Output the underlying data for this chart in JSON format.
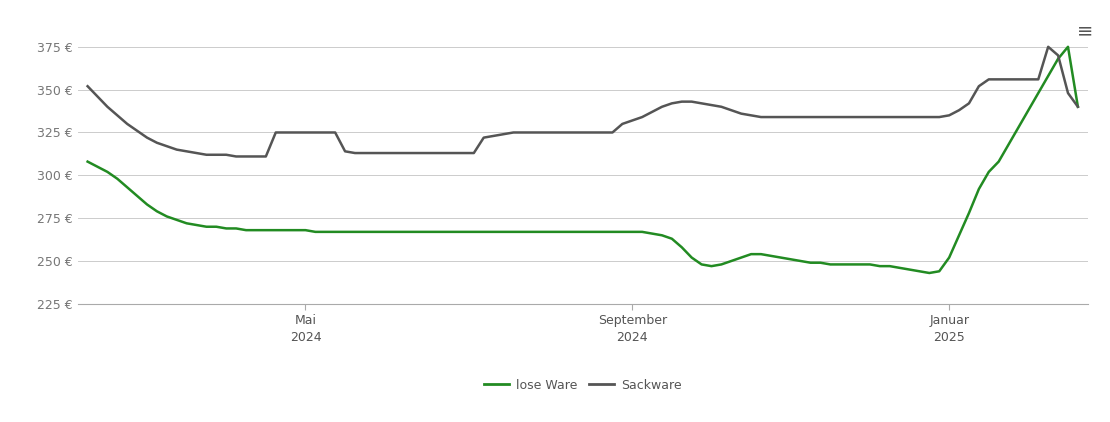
{
  "background_color": "#ffffff",
  "plot_bg_color": "#ffffff",
  "grid_color": "#cccccc",
  "ylim": [
    225,
    390
  ],
  "yticks": [
    225,
    250,
    275,
    300,
    325,
    350,
    375
  ],
  "xtick_labels": [
    "Mai\n2024",
    "September\n2024",
    "Januar\n2025"
  ],
  "xtick_positions": [
    0.22,
    0.55,
    0.87
  ],
  "lose_ware_color": "#228B22",
  "sackware_color": "#555555",
  "legend_lose": "lose Ware",
  "legend_sack": "Sackware",
  "lose_ware": {
    "x": [
      0,
      0.01,
      0.02,
      0.03,
      0.04,
      0.05,
      0.06,
      0.07,
      0.08,
      0.09,
      0.1,
      0.11,
      0.12,
      0.13,
      0.14,
      0.15,
      0.16,
      0.17,
      0.18,
      0.19,
      0.2,
      0.21,
      0.22,
      0.23,
      0.24,
      0.25,
      0.26,
      0.27,
      0.28,
      0.29,
      0.3,
      0.31,
      0.32,
      0.33,
      0.34,
      0.35,
      0.36,
      0.37,
      0.38,
      0.39,
      0.4,
      0.41,
      0.42,
      0.43,
      0.44,
      0.45,
      0.46,
      0.47,
      0.48,
      0.49,
      0.5,
      0.51,
      0.52,
      0.53,
      0.54,
      0.55,
      0.56,
      0.57,
      0.58,
      0.59,
      0.6,
      0.61,
      0.62,
      0.63,
      0.64,
      0.65,
      0.66,
      0.67,
      0.68,
      0.69,
      0.7,
      0.71,
      0.72,
      0.73,
      0.74,
      0.75,
      0.76,
      0.77,
      0.78,
      0.79,
      0.8,
      0.81,
      0.82,
      0.83,
      0.84,
      0.85,
      0.86,
      0.87,
      0.88,
      0.89,
      0.9,
      0.91,
      0.92,
      0.93,
      0.94,
      0.95,
      0.96,
      0.97,
      0.98,
      0.99,
      1.0
    ],
    "y": [
      308,
      305,
      302,
      298,
      293,
      288,
      283,
      279,
      276,
      274,
      272,
      271,
      270,
      270,
      269,
      269,
      268,
      268,
      268,
      268,
      268,
      268,
      268,
      267,
      267,
      267,
      267,
      267,
      267,
      267,
      267,
      267,
      267,
      267,
      267,
      267,
      267,
      267,
      267,
      267,
      267,
      267,
      267,
      267,
      267,
      267,
      267,
      267,
      267,
      267,
      267,
      267,
      267,
      267,
      267,
      267,
      267,
      266,
      265,
      263,
      258,
      252,
      248,
      247,
      248,
      250,
      252,
      254,
      254,
      253,
      252,
      251,
      250,
      249,
      249,
      248,
      248,
      248,
      248,
      248,
      247,
      247,
      246,
      245,
      244,
      243,
      244,
      252,
      265,
      278,
      292,
      302,
      308,
      318,
      328,
      338,
      348,
      358,
      368,
      375,
      340
    ]
  },
  "sackware": {
    "x": [
      0,
      0.01,
      0.02,
      0.03,
      0.04,
      0.05,
      0.06,
      0.07,
      0.08,
      0.09,
      0.1,
      0.11,
      0.12,
      0.13,
      0.14,
      0.15,
      0.16,
      0.17,
      0.18,
      0.19,
      0.2,
      0.21,
      0.22,
      0.23,
      0.24,
      0.25,
      0.26,
      0.27,
      0.28,
      0.29,
      0.3,
      0.31,
      0.32,
      0.33,
      0.34,
      0.35,
      0.36,
      0.37,
      0.38,
      0.39,
      0.4,
      0.41,
      0.42,
      0.43,
      0.44,
      0.45,
      0.46,
      0.47,
      0.48,
      0.49,
      0.5,
      0.51,
      0.52,
      0.53,
      0.54,
      0.55,
      0.56,
      0.57,
      0.58,
      0.59,
      0.6,
      0.61,
      0.62,
      0.63,
      0.64,
      0.65,
      0.66,
      0.67,
      0.68,
      0.69,
      0.7,
      0.71,
      0.72,
      0.73,
      0.74,
      0.75,
      0.76,
      0.77,
      0.78,
      0.79,
      0.8,
      0.81,
      0.82,
      0.83,
      0.84,
      0.85,
      0.86,
      0.87,
      0.88,
      0.89,
      0.9,
      0.91,
      0.92,
      0.93,
      0.94,
      0.95,
      0.96,
      0.97,
      0.98,
      0.99,
      1.0
    ],
    "y": [
      352,
      346,
      340,
      335,
      330,
      326,
      322,
      319,
      317,
      315,
      314,
      313,
      312,
      312,
      312,
      311,
      311,
      311,
      311,
      325,
      325,
      325,
      325,
      325,
      325,
      325,
      314,
      313,
      313,
      313,
      313,
      313,
      313,
      313,
      313,
      313,
      313,
      313,
      313,
      313,
      322,
      323,
      324,
      325,
      325,
      325,
      325,
      325,
      325,
      325,
      325,
      325,
      325,
      325,
      330,
      332,
      334,
      337,
      340,
      342,
      343,
      343,
      342,
      341,
      340,
      338,
      336,
      335,
      334,
      334,
      334,
      334,
      334,
      334,
      334,
      334,
      334,
      334,
      334,
      334,
      334,
      334,
      334,
      334,
      334,
      334,
      334,
      335,
      338,
      342,
      352,
      356,
      356,
      356,
      356,
      356,
      356,
      375,
      370,
      348,
      340
    ]
  }
}
